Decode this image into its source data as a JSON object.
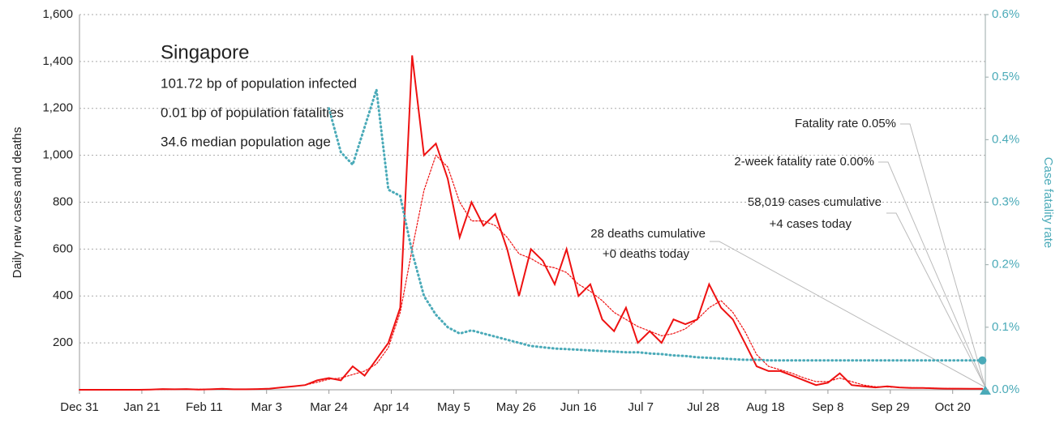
{
  "chart_data": {
    "type": "line",
    "annotations": [
      "Singapore",
      "101.72 bp of population infected",
      "0.01 bp of population fatalities",
      "34.6 median population age",
      "Fatality rate 0.05%",
      "2-week fatality rate 0.00%",
      "58,019 cases cumulative",
      "+4 cases today",
      "28 deaths cumulative",
      "+0 deaths today"
    ],
    "ylabel": "Daily new cases and deaths",
    "y2label": "Case fatality rate",
    "x": [
      0,
      4,
      8,
      12,
      16,
      20,
      24,
      28,
      32,
      36,
      40,
      44,
      48,
      52,
      56,
      60,
      64,
      68,
      72,
      76,
      80,
      84,
      88,
      92,
      96,
      100,
      104,
      108,
      112,
      116,
      120,
      124,
      128,
      132,
      136,
      140,
      144,
      148,
      152,
      156,
      160,
      164,
      168,
      172,
      176,
      180,
      184,
      188,
      192,
      196,
      200,
      204,
      208,
      212,
      216,
      220,
      224,
      228,
      232,
      236,
      240,
      244,
      248,
      252,
      256,
      260,
      264,
      268,
      272,
      276,
      280,
      284,
      288,
      292,
      296,
      300,
      304
    ],
    "xlim": [
      0,
      305
    ],
    "xticks": [
      {
        "value": 0,
        "label": "Dec 31"
      },
      {
        "value": 21,
        "label": "Jan 21"
      },
      {
        "value": 42,
        "label": "Feb 11"
      },
      {
        "value": 63,
        "label": "Mar 3"
      },
      {
        "value": 84,
        "label": "Mar 24"
      },
      {
        "value": 105,
        "label": "Apr 14"
      },
      {
        "value": 126,
        "label": "May 5"
      },
      {
        "value": 147,
        "label": "May 26"
      },
      {
        "value": 168,
        "label": "Jun 16"
      },
      {
        "value": 189,
        "label": "Jul 7"
      },
      {
        "value": 210,
        "label": "Jul 28"
      },
      {
        "value": 231,
        "label": "Aug 18"
      },
      {
        "value": 252,
        "label": "Sep 8"
      },
      {
        "value": 273,
        "label": "Sep 29"
      },
      {
        "value": 294,
        "label": "Oct 20"
      }
    ],
    "ylim": [
      0,
      1600
    ],
    "yticks": [
      {
        "value": 200,
        "label": "200"
      },
      {
        "value": 400,
        "label": "400"
      },
      {
        "value": 600,
        "label": "600"
      },
      {
        "value": 800,
        "label": "800"
      },
      {
        "value": 1000,
        "label": "1,000"
      },
      {
        "value": 1200,
        "label": "1,200"
      },
      {
        "value": 1400,
        "label": "1,400"
      },
      {
        "value": 1600,
        "label": "1,600"
      }
    ],
    "y2lim": [
      0,
      0.6
    ],
    "y2ticks": [
      {
        "value": 0,
        "label": "0.0%"
      },
      {
        "value": 0.1,
        "label": "0.1%"
      },
      {
        "value": 0.2,
        "label": "0.2%"
      },
      {
        "value": 0.3,
        "label": "0.3%"
      },
      {
        "value": 0.4,
        "label": "0.4%"
      },
      {
        "value": 0.5,
        "label": "0.5%"
      },
      {
        "value": 0.6,
        "label": "0.6%"
      }
    ],
    "grid": true,
    "series": [
      {
        "color": "#ee1111",
        "style": "solid",
        "values": [
          0,
          0,
          0,
          0,
          0,
          0,
          1,
          3,
          2,
          3,
          1,
          2,
          4,
          2,
          2,
          3,
          5,
          10,
          15,
          20,
          40,
          50,
          40,
          100,
          60,
          130,
          200,
          350,
          1426,
          1000,
          1050,
          900,
          650,
          800,
          700,
          750,
          600,
          400,
          600,
          550,
          450,
          600,
          400,
          450,
          300,
          250,
          350,
          200,
          250,
          200,
          300,
          280,
          300,
          450,
          350,
          300,
          200,
          100,
          80,
          80,
          60,
          40,
          20,
          30,
          70,
          20,
          15,
          10,
          15,
          10,
          8,
          8,
          6,
          5,
          5,
          4,
          4
        ]
      },
      {
        "color": "#ee1111",
        "style": "dotted",
        "values": [
          0,
          0,
          0,
          0,
          0,
          0,
          1,
          1,
          2,
          2,
          2,
          2,
          2,
          2,
          3,
          3,
          5,
          10,
          14,
          20,
          32,
          45,
          50,
          65,
          80,
          110,
          180,
          330,
          600,
          850,
          1000,
          950,
          800,
          720,
          720,
          700,
          650,
          580,
          560,
          530,
          520,
          500,
          450,
          420,
          380,
          330,
          300,
          270,
          250,
          230,
          240,
          260,
          300,
          350,
          380,
          330,
          250,
          150,
          100,
          85,
          70,
          50,
          35,
          35,
          50,
          35,
          20,
          13,
          12,
          10,
          9,
          8,
          7,
          6,
          5,
          5,
          4
        ]
      },
      {
        "color": "#4aaab8",
        "style": "dotted",
        "axis": "y2",
        "values": [
          null,
          null,
          null,
          null,
          null,
          null,
          null,
          null,
          null,
          null,
          null,
          null,
          null,
          null,
          null,
          null,
          null,
          null,
          null,
          null,
          null,
          0.45,
          0.38,
          0.36,
          0.42,
          0.48,
          0.32,
          0.31,
          0.22,
          0.15,
          0.12,
          0.1,
          0.09,
          0.095,
          0.09,
          0.085,
          0.08,
          0.075,
          0.07,
          0.068,
          0.066,
          0.065,
          0.064,
          0.063,
          0.062,
          0.061,
          0.06,
          0.06,
          0.058,
          0.057,
          0.055,
          0.054,
          0.052,
          0.051,
          0.05,
          0.049,
          0.048,
          0.048,
          0.047,
          0.047,
          0.047,
          0.047,
          0.047,
          0.047,
          0.047,
          0.047,
          0.047,
          0.047,
          0.047,
          0.047,
          0.047,
          0.047,
          0.047,
          0.047,
          0.047,
          0.047,
          0.047
        ]
      }
    ]
  }
}
